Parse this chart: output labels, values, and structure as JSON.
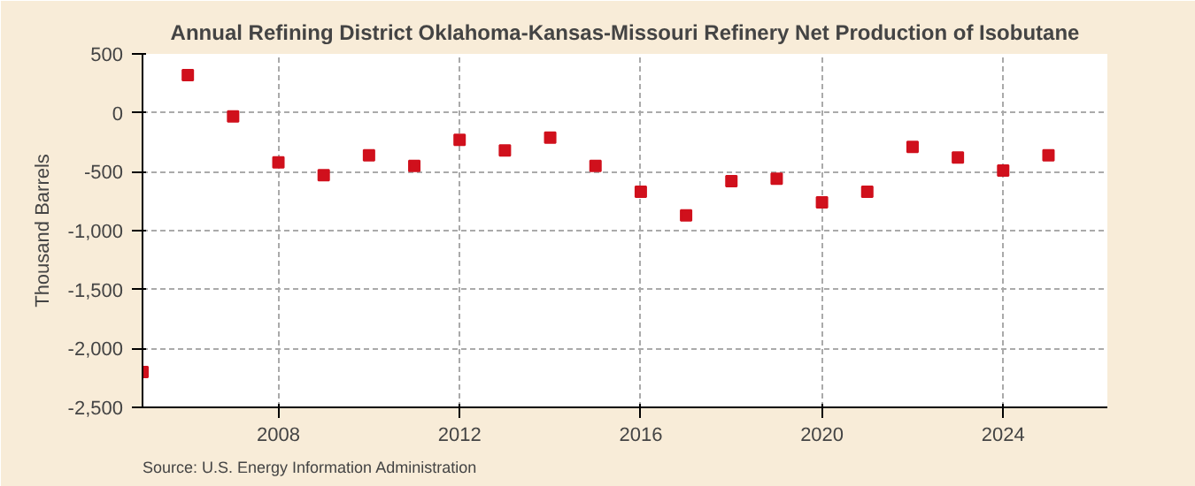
{
  "chart_data": {
    "type": "scatter",
    "title": "Annual Refining District Oklahoma-Kansas-Missouri Refinery Net Production of Isobutane",
    "ylabel": "Thousand Barrels",
    "x": [
      2005,
      2006,
      2007,
      2008,
      2009,
      2010,
      2011,
      2012,
      2013,
      2014,
      2015,
      2016,
      2017,
      2018,
      2019,
      2020,
      2021,
      2022,
      2023,
      2024,
      2025
    ],
    "series": [
      {
        "color": "#d0101c",
        "values": [
          -2200,
          320,
          -30,
          -420,
          -530,
          -360,
          -450,
          -230,
          -320,
          -210,
          -450,
          -670,
          -870,
          -580,
          -560,
          -760,
          -670,
          -290,
          -380,
          -490,
          -360
        ]
      }
    ],
    "xlim": [
      2005,
      2026.3
    ],
    "xticks": [
      2008,
      2012,
      2016,
      2020,
      2024
    ],
    "ylim": [
      -2500,
      500
    ],
    "yticks": [
      {
        "value": -2500,
        "label": "-2,500"
      },
      {
        "value": -2000,
        "label": "-2,000"
      },
      {
        "value": -1500,
        "label": "-1,500"
      },
      {
        "value": -1000,
        "label": "-1,000"
      },
      {
        "value": -500,
        "label": "-500"
      },
      0,
      500
    ],
    "grid": true,
    "marker": "square",
    "annotations": [
      "Source: U.S. Energy Information Administration"
    ]
  }
}
